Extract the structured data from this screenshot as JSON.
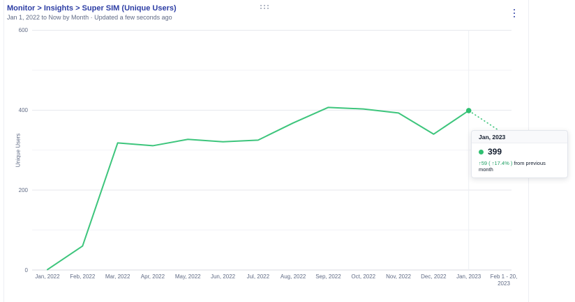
{
  "header": {
    "title": "Monitor > Insights > Super SIM (Unique Users)",
    "subtitle": "Jan 1, 2022 to Now by Month · Updated a few seconds ago"
  },
  "icons": {
    "drag_handle": "six-dot-grid",
    "overflow_menu": "vertical-kebab-dots"
  },
  "colors": {
    "accent_blue": "#2c3da4",
    "line_green": "#3dc57c",
    "point_green": "#2fbf71",
    "delta_green": "#1d9f62",
    "text_gray": "#606b85",
    "text_dark": "#121c2d",
    "grid_major": "#e6e8ee",
    "grid_minor": "#f2f3f7",
    "grid_zero": "#d8dbe2",
    "hover_guideline": "#edeff3"
  },
  "chart_data": {
    "type": "line",
    "title": "Super SIM (Unique Users)",
    "xlabel": "",
    "ylabel": "Unique Users",
    "ylim": [
      0,
      600
    ],
    "yticks": [
      0,
      200,
      400,
      600
    ],
    "yticks_minor": [
      100,
      300,
      500
    ],
    "grid": true,
    "legend_position": "none",
    "categories": [
      "Jan, 2022",
      "Feb, 2022",
      "Mar, 2022",
      "Apr, 2022",
      "May, 2022",
      "Jun, 2022",
      "Jul, 2022",
      "Aug, 2022",
      "Sep, 2022",
      "Oct, 2022",
      "Nov, 2022",
      "Dec, 2022",
      "Jan, 2023",
      "Feb 1 - 20, 2023"
    ],
    "series": [
      {
        "name": "Unique Users",
        "values": [
          1,
          60,
          318,
          311,
          327,
          321,
          325,
          368,
          407,
          403,
          393,
          340,
          399,
          341
        ],
        "partial_last_segment": true
      }
    ],
    "highlighted_point": {
      "category": "Jan, 2023",
      "value": 399
    }
  },
  "tooltip": {
    "title": "Jan, 2023",
    "value": "399",
    "delta": "↑59 ( ↑17.4% )",
    "delta_suffix": "from previous month"
  }
}
